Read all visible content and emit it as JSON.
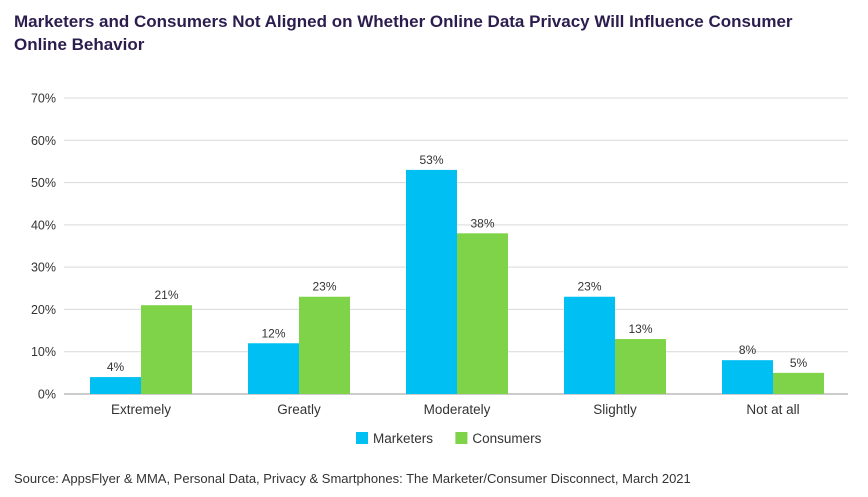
{
  "title": "Marketers and Consumers Not Aligned on Whether Online Data Privacy Will Influence Consumer Online Behavior",
  "source": "Source: AppsFlyer & MMA, Personal Data, Privacy & Smartphones: The Marketer/Consumer Disconnect, March 2021",
  "chart_data": {
    "type": "bar",
    "title": "Marketers and Consumers Not Aligned on Whether Online Data Privacy Will Influence Consumer Online Behavior",
    "categories": [
      "Extremely",
      "Greatly",
      "Moderately",
      "Slightly",
      "Not at all"
    ],
    "series": [
      {
        "name": "Marketers",
        "values": [
          4,
          12,
          53,
          23,
          8
        ],
        "color": "#00bff3"
      },
      {
        "name": "Consumers",
        "values": [
          21,
          23,
          38,
          13,
          5
        ],
        "color": "#7ed348"
      }
    ],
    "value_suffix": "%",
    "ylim": [
      0,
      70
    ],
    "yticks": [
      "0%",
      "10%",
      "20%",
      "30%",
      "40%",
      "50%",
      "60%",
      "70%"
    ],
    "grid": true,
    "legend_position": "bottom-center"
  }
}
